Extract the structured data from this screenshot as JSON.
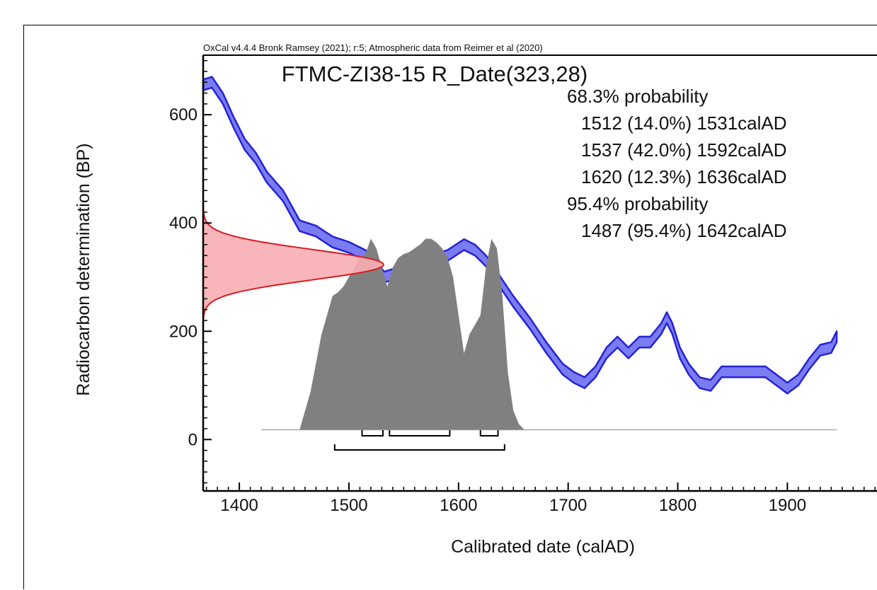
{
  "chart_data": {
    "type": "area",
    "header": "OxCal v4.4.4 Bronk Ramsey (2021); r:5; Atmospheric data from Reimer et al (2020)",
    "title": "FTMC-ZI38-15 R_Date(323,28)",
    "xlabel": "Calibrated date (calAD)",
    "ylabel": "Radiocarbon determination (BP)",
    "xlim": [
      1367,
      1985
    ],
    "ylim": [
      -95,
      710
    ],
    "x_ticks": [
      1400,
      1500,
      1600,
      1700,
      1800,
      1900
    ],
    "y_ticks": [
      0,
      200,
      400,
      600
    ],
    "grid": false,
    "legend": "none",
    "colors": {
      "curve_fill": "#7b7bf2",
      "curve_edge": "#2323d6",
      "rdate_fill": "#f7aeb2",
      "rdate_edge": "#d91a22",
      "posterior_fill": "#808080",
      "baseline": "#aaaaaa"
    },
    "summary": [
      "68.3% probability",
      "1512 (14.0%) 1531calAD",
      "1537 (42.0%) 1592calAD",
      "1620 (12.3%) 1636calAD",
      "95.4% probability",
      "1487 (95.4%) 1642calAD"
    ],
    "radiocarbon_date": {
      "mean": 323,
      "sigma": 28
    },
    "calibration_curve": {
      "half_width": 10,
      "x": [
        1367,
        1375,
        1385,
        1395,
        1405,
        1415,
        1425,
        1440,
        1455,
        1470,
        1485,
        1500,
        1515,
        1525,
        1532,
        1540,
        1550,
        1560,
        1575,
        1590,
        1605,
        1615,
        1625,
        1635,
        1650,
        1665,
        1680,
        1695,
        1705,
        1715,
        1725,
        1735,
        1745,
        1755,
        1765,
        1775,
        1785,
        1790,
        1795,
        1802,
        1810,
        1820,
        1830,
        1840,
        1850,
        1860,
        1870,
        1880,
        1890,
        1900,
        1910,
        1920,
        1930,
        1940,
        1945
      ],
      "y": [
        655,
        660,
        630,
        585,
        545,
        520,
        485,
        450,
        395,
        385,
        365,
        355,
        340,
        320,
        300,
        305,
        315,
        320,
        330,
        340,
        360,
        350,
        330,
        300,
        255,
        215,
        170,
        130,
        115,
        105,
        125,
        160,
        180,
        160,
        180,
        180,
        205,
        225,
        205,
        160,
        130,
        105,
        100,
        125,
        125,
        125,
        125,
        125,
        110,
        95,
        110,
        140,
        165,
        170,
        190
      ]
    },
    "posterior": {
      "x": [
        1455,
        1460,
        1465,
        1470,
        1475,
        1480,
        1485,
        1490,
        1495,
        1500,
        1505,
        1510,
        1515,
        1520,
        1525,
        1530,
        1535,
        1540,
        1545,
        1550,
        1555,
        1560,
        1565,
        1570,
        1575,
        1580,
        1585,
        1590,
        1595,
        1600,
        1605,
        1610,
        1615,
        1620,
        1625,
        1630,
        1635,
        1640,
        1645,
        1650,
        1655,
        1660
      ],
      "density": [
        0,
        0.1,
        0.2,
        0.35,
        0.5,
        0.6,
        0.7,
        0.72,
        0.75,
        0.8,
        0.85,
        0.9,
        0.92,
        1.0,
        0.95,
        0.85,
        0.75,
        0.85,
        0.9,
        0.92,
        0.93,
        0.95,
        0.97,
        1.0,
        1.0,
        0.98,
        0.95,
        0.9,
        0.8,
        0.6,
        0.4,
        0.5,
        0.55,
        0.6,
        0.85,
        1.0,
        0.95,
        0.7,
        0.3,
        0.1,
        0.03,
        0
      ]
    },
    "ranges_68": [
      [
        1512,
        1531
      ],
      [
        1537,
        1592
      ],
      [
        1620,
        1636
      ]
    ],
    "ranges_95": [
      [
        1487,
        1642
      ]
    ]
  }
}
